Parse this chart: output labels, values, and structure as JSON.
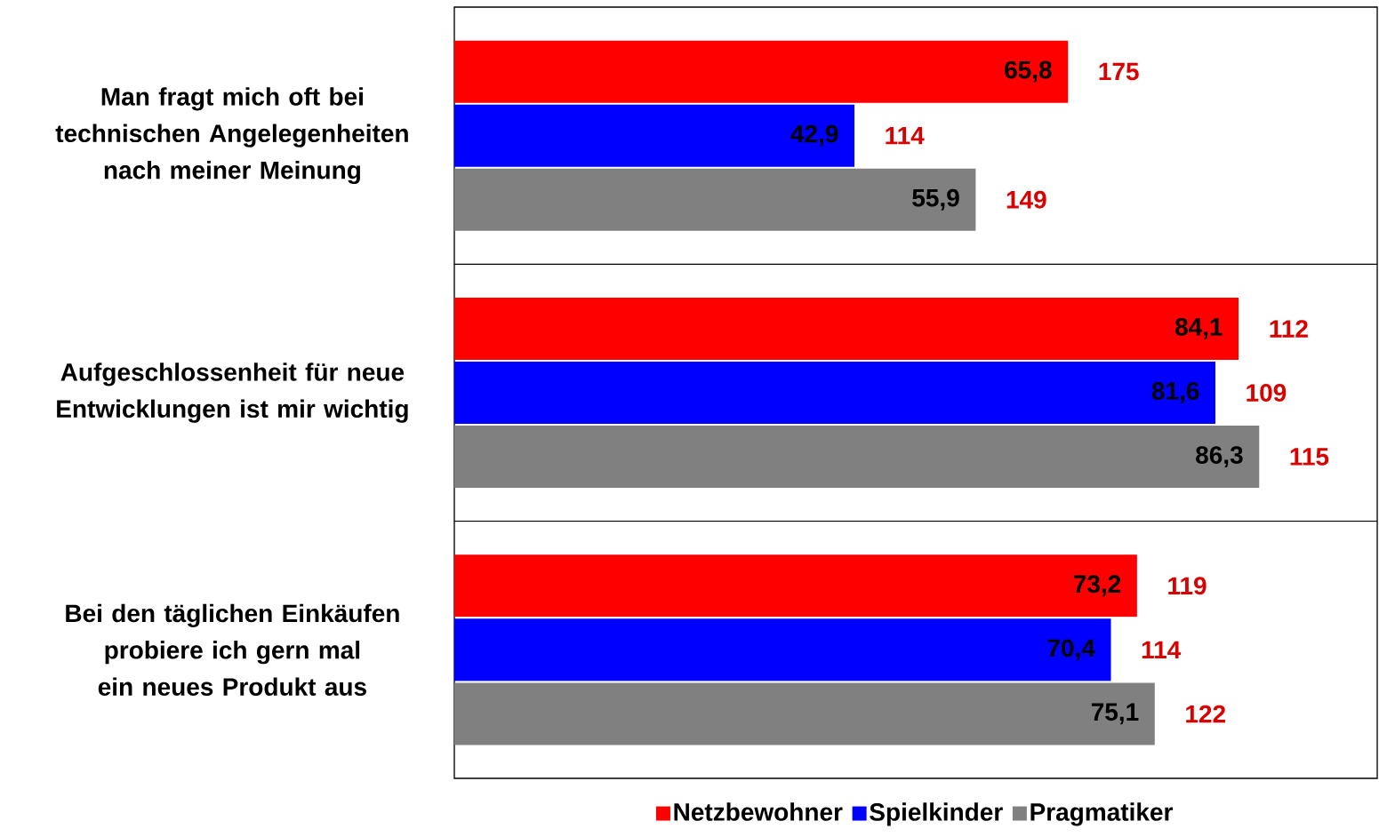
{
  "chart_data": {
    "type": "bar",
    "orientation": "horizontal",
    "categories": [
      "Man fragt mich oft bei technischen Angelegenheiten nach meiner Meinung",
      "Aufgeschlossenheit für neue Entwicklungen ist mir wichtig",
      "Bei den täglichen Einkäufen probiere ich gern mal ein neues Produkt aus"
    ],
    "series": [
      {
        "name": "Netzbewohner",
        "color": "#ff0000",
        "values": [
          65.8,
          84.1,
          73.2
        ],
        "value_labels": [
          "65,8",
          "84,1",
          "73,2"
        ]
      },
      {
        "name": "Spielkinder",
        "color": "#0000ff",
        "values": [
          42.9,
          81.6,
          70.4
        ],
        "value_labels": [
          "42,9",
          "81,6",
          "70,4"
        ]
      },
      {
        "name": "Pragmatiker",
        "color": "#808080",
        "values": [
          55.9,
          86.3,
          75.1
        ],
        "value_labels": [
          "55,9",
          "86,3",
          "75,1"
        ]
      }
    ],
    "legend": "bottom",
    "tick_labels": "y",
    "annotations": [
      "175",
      "114",
      "149",
      "112",
      "109",
      "115",
      "119",
      "114",
      "122"
    ]
  }
}
